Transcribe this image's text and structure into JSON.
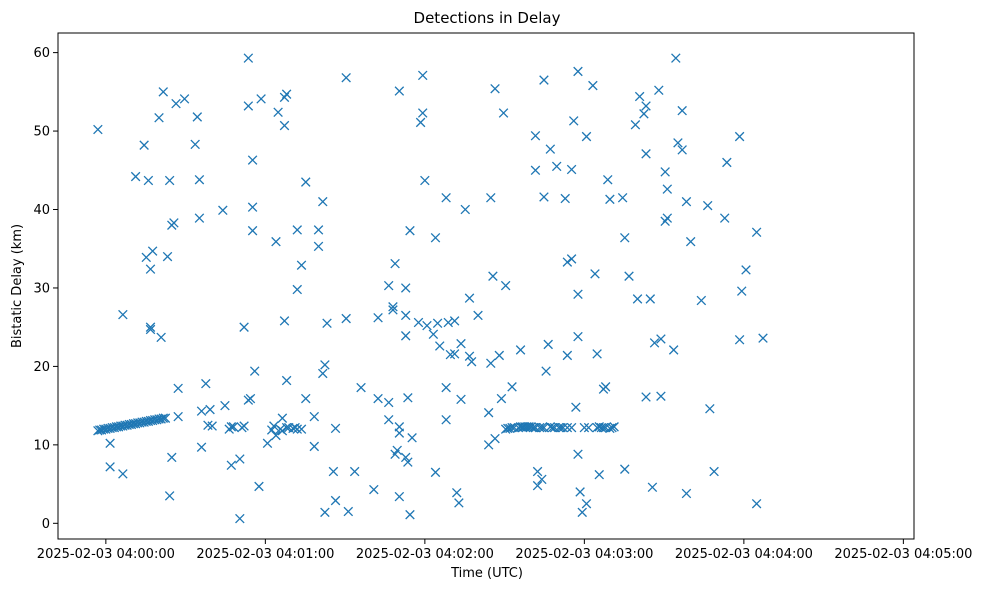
{
  "chart_data": {
    "type": "scatter",
    "title": "Detections in Delay",
    "xlabel": "Time (UTC)",
    "ylabel": "Bistatic Delay (km)",
    "marker": "x",
    "color": "#1f77b4",
    "grid": false,
    "legend": "none",
    "x_unit": "seconds after 2025-02-03 04:00:00 UTC",
    "xlim": [
      -18,
      304
    ],
    "ylim": [
      -2,
      62.5
    ],
    "x_ticks": [
      0,
      60,
      120,
      180,
      240,
      300
    ],
    "x_tick_labels": [
      "2025-02-03 04:00:00",
      "2025-02-03 04:01:00",
      "2025-02-03 04:02:00",
      "2025-02-03 04:03:00",
      "2025-02-03 04:04:00",
      "2025-02-03 04:05:00"
    ],
    "y_ticks": [
      0,
      10,
      20,
      30,
      40,
      50,
      60
    ],
    "y_tick_labels": [
      "0",
      "10",
      "20",
      "30",
      "40",
      "50",
      "60"
    ],
    "points": [
      [
        -3.0,
        11.8
      ],
      [
        -2.3,
        11.9
      ],
      [
        -1.6,
        11.9
      ],
      [
        -0.8,
        12.0
      ],
      [
        0.0,
        12.0
      ],
      [
        0.8,
        12.1
      ],
      [
        1.6,
        12.1
      ],
      [
        2.4,
        12.2
      ],
      [
        3.2,
        12.2
      ],
      [
        4.0,
        12.3
      ],
      [
        4.8,
        12.3
      ],
      [
        5.6,
        12.4
      ],
      [
        6.4,
        12.4
      ],
      [
        7.2,
        12.5
      ],
      [
        8.0,
        12.5
      ],
      [
        8.8,
        12.6
      ],
      [
        9.6,
        12.6
      ],
      [
        10.4,
        12.7
      ],
      [
        11.2,
        12.7
      ],
      [
        12.0,
        12.8
      ],
      [
        12.8,
        12.8
      ],
      [
        13.6,
        12.9
      ],
      [
        14.4,
        12.9
      ],
      [
        15.2,
        13.0
      ],
      [
        16.0,
        13.0
      ],
      [
        16.8,
        13.1
      ],
      [
        17.6,
        13.1
      ],
      [
        18.4,
        13.2
      ],
      [
        19.2,
        13.2
      ],
      [
        20.0,
        13.3
      ],
      [
        20.8,
        13.3
      ],
      [
        21.6,
        13.4
      ],
      [
        22.4,
        13.4
      ],
      [
        -3.0,
        50.2
      ],
      [
        1.6,
        10.2
      ],
      [
        1.6,
        7.2
      ],
      [
        6.4,
        26.6
      ],
      [
        6.4,
        6.3
      ],
      [
        11.2,
        44.2
      ],
      [
        14.4,
        48.2
      ],
      [
        15.2,
        33.9
      ],
      [
        16.0,
        43.7
      ],
      [
        16.8,
        32.4
      ],
      [
        16.8,
        24.7
      ],
      [
        16.8,
        25.0
      ],
      [
        17.6,
        34.7
      ],
      [
        20.0,
        51.7
      ],
      [
        20.8,
        23.7
      ],
      [
        21.6,
        55.0
      ],
      [
        23.2,
        34.0
      ],
      [
        24.0,
        43.7
      ],
      [
        24.0,
        3.5
      ],
      [
        24.8,
        38.0
      ],
      [
        24.8,
        8.4
      ],
      [
        25.6,
        38.3
      ],
      [
        26.4,
        53.5
      ],
      [
        27.2,
        17.2
      ],
      [
        27.2,
        13.6
      ],
      [
        29.6,
        54.1
      ],
      [
        33.6,
        48.3
      ],
      [
        34.4,
        51.8
      ],
      [
        35.2,
        43.8
      ],
      [
        35.2,
        38.9
      ],
      [
        36.0,
        14.3
      ],
      [
        36.0,
        9.7
      ],
      [
        37.6,
        17.8
      ],
      [
        38.4,
        12.5
      ],
      [
        39.2,
        14.5
      ],
      [
        40.0,
        12.4
      ],
      [
        44.0,
        39.9
      ],
      [
        44.8,
        15.0
      ],
      [
        46.4,
        12.0
      ],
      [
        47.2,
        12.3
      ],
      [
        47.2,
        7.4
      ],
      [
        48.0,
        12.3
      ],
      [
        50.4,
        8.2
      ],
      [
        50.4,
        0.6
      ],
      [
        51.2,
        12.2
      ],
      [
        52.0,
        12.4
      ],
      [
        52.0,
        25.0
      ],
      [
        53.6,
        59.3
      ],
      [
        53.6,
        53.2
      ],
      [
        53.6,
        15.7
      ],
      [
        54.4,
        15.9
      ],
      [
        55.2,
        46.3
      ],
      [
        55.2,
        40.3
      ],
      [
        55.2,
        37.3
      ],
      [
        56.0,
        19.4
      ],
      [
        57.6,
        4.7
      ],
      [
        58.4,
        54.1
      ],
      [
        60.8,
        10.2
      ],
      [
        62.4,
        11.9
      ],
      [
        63.2,
        12.4
      ],
      [
        64.0,
        11.2
      ],
      [
        64.0,
        35.9
      ],
      [
        64.8,
        52.4
      ],
      [
        65.6,
        12.0
      ],
      [
        66.4,
        13.4
      ],
      [
        66.4,
        11.8
      ],
      [
        67.2,
        54.3
      ],
      [
        67.2,
        50.7
      ],
      [
        67.2,
        25.8
      ],
      [
        68.0,
        54.7
      ],
      [
        68.0,
        18.2
      ],
      [
        68.0,
        12.2
      ],
      [
        68.8,
        12.2
      ],
      [
        70.4,
        12.1
      ],
      [
        71.2,
        12.2
      ],
      [
        72.0,
        12.0
      ],
      [
        72.0,
        37.4
      ],
      [
        72.0,
        29.8
      ],
      [
        73.6,
        12.0
      ],
      [
        73.6,
        32.9
      ],
      [
        75.2,
        43.5
      ],
      [
        75.2,
        15.9
      ],
      [
        78.4,
        9.8
      ],
      [
        78.4,
        13.6
      ],
      [
        80.0,
        37.4
      ],
      [
        80.0,
        35.3
      ],
      [
        81.6,
        41.0
      ],
      [
        81.6,
        19.1
      ],
      [
        82.4,
        20.2
      ],
      [
        82.4,
        1.4
      ],
      [
        83.2,
        25.5
      ],
      [
        85.6,
        6.6
      ],
      [
        86.4,
        2.9
      ],
      [
        86.4,
        12.1
      ],
      [
        90.4,
        56.8
      ],
      [
        90.4,
        26.1
      ],
      [
        91.2,
        1.5
      ],
      [
        93.6,
        6.6
      ],
      [
        96.0,
        17.3
      ],
      [
        100.8,
        4.3
      ],
      [
        102.4,
        15.9
      ],
      [
        102.4,
        26.2
      ],
      [
        106.4,
        15.4
      ],
      [
        106.4,
        30.3
      ],
      [
        106.4,
        13.2
      ],
      [
        108.0,
        27.2
      ],
      [
        108.0,
        27.6
      ],
      [
        108.8,
        33.1
      ],
      [
        108.8,
        8.8
      ],
      [
        109.6,
        9.3
      ],
      [
        110.4,
        55.1
      ],
      [
        110.4,
        12.3
      ],
      [
        110.4,
        11.5
      ],
      [
        110.4,
        3.4
      ],
      [
        112.8,
        30.0
      ],
      [
        112.8,
        26.5
      ],
      [
        112.8,
        23.9
      ],
      [
        112.8,
        8.4
      ],
      [
        113.6,
        7.8
      ],
      [
        113.6,
        16.0
      ],
      [
        114.4,
        37.3
      ],
      [
        114.4,
        1.1
      ],
      [
        115.2,
        10.9
      ],
      [
        117.6,
        25.6
      ],
      [
        118.4,
        51.1
      ],
      [
        119.2,
        52.3
      ],
      [
        119.2,
        57.1
      ],
      [
        120.0,
        43.7
      ],
      [
        120.8,
        25.2
      ],
      [
        123.2,
        24.1
      ],
      [
        124.0,
        36.4
      ],
      [
        124.0,
        6.5
      ],
      [
        124.8,
        25.5
      ],
      [
        125.6,
        22.6
      ],
      [
        128.0,
        41.5
      ],
      [
        128.0,
        17.3
      ],
      [
        128.0,
        13.2
      ],
      [
        128.8,
        25.6
      ],
      [
        129.6,
        21.5
      ],
      [
        131.2,
        25.8
      ],
      [
        131.2,
        21.6
      ],
      [
        132.0,
        3.9
      ],
      [
        132.8,
        2.6
      ],
      [
        133.6,
        22.9
      ],
      [
        133.6,
        15.8
      ],
      [
        135.2,
        40.0
      ],
      [
        136.8,
        28.7
      ],
      [
        136.8,
        21.3
      ],
      [
        137.6,
        20.6
      ],
      [
        140.0,
        26.5
      ],
      [
        144.0,
        10.0
      ],
      [
        144.0,
        14.1
      ],
      [
        144.8,
        41.5
      ],
      [
        144.8,
        20.4
      ],
      [
        145.6,
        31.5
      ],
      [
        146.4,
        55.4
      ],
      [
        146.4,
        10.8
      ],
      [
        148.0,
        21.4
      ],
      [
        148.8,
        15.9
      ],
      [
        149.6,
        52.3
      ],
      [
        150.4,
        30.3
      ],
      [
        150.4,
        12.0
      ],
      [
        151.2,
        12.1
      ],
      [
        152.0,
        12.1
      ],
      [
        152.8,
        17.4
      ],
      [
        152.8,
        12.2
      ],
      [
        153.6,
        12.2
      ],
      [
        155.2,
        12.2
      ],
      [
        156.0,
        22.1
      ],
      [
        156.0,
        12.3
      ],
      [
        156.8,
        12.3
      ],
      [
        156.8,
        12.2
      ],
      [
        157.6,
        12.3
      ],
      [
        158.4,
        12.3
      ],
      [
        159.2,
        12.3
      ],
      [
        160.0,
        12.3
      ],
      [
        160.8,
        12.2
      ],
      [
        161.6,
        12.2
      ],
      [
        161.6,
        49.4
      ],
      [
        161.6,
        45.0
      ],
      [
        161.6,
        12.2
      ],
      [
        162.4,
        4.8
      ],
      [
        162.4,
        6.6
      ],
      [
        163.2,
        12.2
      ],
      [
        164.0,
        5.6
      ],
      [
        164.0,
        12.2
      ],
      [
        164.8,
        56.5
      ],
      [
        164.8,
        41.6
      ],
      [
        164.8,
        12.2
      ],
      [
        165.6,
        19.4
      ],
      [
        166.4,
        22.8
      ],
      [
        167.2,
        47.7
      ],
      [
        167.2,
        12.3
      ],
      [
        168.0,
        12.2
      ],
      [
        168.8,
        12.2
      ],
      [
        169.6,
        45.5
      ],
      [
        170.4,
        12.2
      ],
      [
        171.2,
        12.2
      ],
      [
        172.0,
        12.2
      ],
      [
        172.8,
        41.4
      ],
      [
        173.6,
        33.3
      ],
      [
        173.6,
        12.2
      ],
      [
        173.6,
        21.4
      ],
      [
        175.2,
        33.7
      ],
      [
        175.2,
        45.1
      ],
      [
        175.2,
        12.2
      ],
      [
        176.0,
        51.3
      ],
      [
        176.8,
        14.8
      ],
      [
        177.6,
        57.6
      ],
      [
        177.6,
        29.2
      ],
      [
        177.6,
        23.8
      ],
      [
        177.6,
        8.8
      ],
      [
        178.4,
        4.0
      ],
      [
        179.2,
        1.4
      ],
      [
        180.0,
        12.2
      ],
      [
        180.8,
        49.3
      ],
      [
        180.8,
        2.5
      ],
      [
        181.6,
        12.2
      ],
      [
        183.2,
        55.8
      ],
      [
        184.0,
        31.8
      ],
      [
        184.8,
        21.6
      ],
      [
        184.8,
        12.2
      ],
      [
        185.6,
        12.3
      ],
      [
        185.6,
        6.2
      ],
      [
        186.4,
        12.2
      ],
      [
        187.2,
        12.2
      ],
      [
        187.2,
        17.1
      ],
      [
        188.0,
        17.4
      ],
      [
        188.0,
        12.2
      ],
      [
        188.8,
        43.8
      ],
      [
        189.6,
        12.1
      ],
      [
        189.6,
        41.3
      ],
      [
        190.4,
        12.2
      ],
      [
        191.2,
        12.3
      ],
      [
        194.4,
        41.5
      ],
      [
        195.2,
        36.4
      ],
      [
        195.2,
        6.9
      ],
      [
        196.8,
        31.5
      ],
      [
        199.2,
        50.8
      ],
      [
        200.0,
        28.6
      ],
      [
        200.8,
        54.4
      ],
      [
        202.4,
        52.2
      ],
      [
        203.2,
        53.2
      ],
      [
        203.2,
        47.1
      ],
      [
        203.2,
        16.1
      ],
      [
        204.8,
        28.6
      ],
      [
        205.6,
        4.6
      ],
      [
        206.4,
        23.0
      ],
      [
        208.0,
        55.2
      ],
      [
        208.8,
        23.5
      ],
      [
        208.8,
        16.2
      ],
      [
        210.4,
        44.8
      ],
      [
        210.4,
        38.5
      ],
      [
        211.2,
        42.6
      ],
      [
        211.2,
        38.9
      ],
      [
        213.6,
        22.1
      ],
      [
        214.4,
        59.3
      ],
      [
        215.2,
        48.5
      ],
      [
        216.8,
        52.6
      ],
      [
        216.8,
        47.6
      ],
      [
        218.4,
        41.0
      ],
      [
        218.4,
        3.8
      ],
      [
        220.0,
        35.9
      ],
      [
        224.0,
        28.4
      ],
      [
        226.4,
        40.5
      ],
      [
        227.2,
        14.6
      ],
      [
        228.8,
        6.6
      ],
      [
        232.8,
        38.9
      ],
      [
        233.6,
        46.0
      ],
      [
        238.4,
        49.3
      ],
      [
        238.4,
        23.4
      ],
      [
        239.2,
        29.6
      ],
      [
        240.8,
        32.3
      ],
      [
        244.8,
        37.1
      ],
      [
        244.8,
        2.5
      ],
      [
        247.2,
        23.6
      ]
    ]
  }
}
